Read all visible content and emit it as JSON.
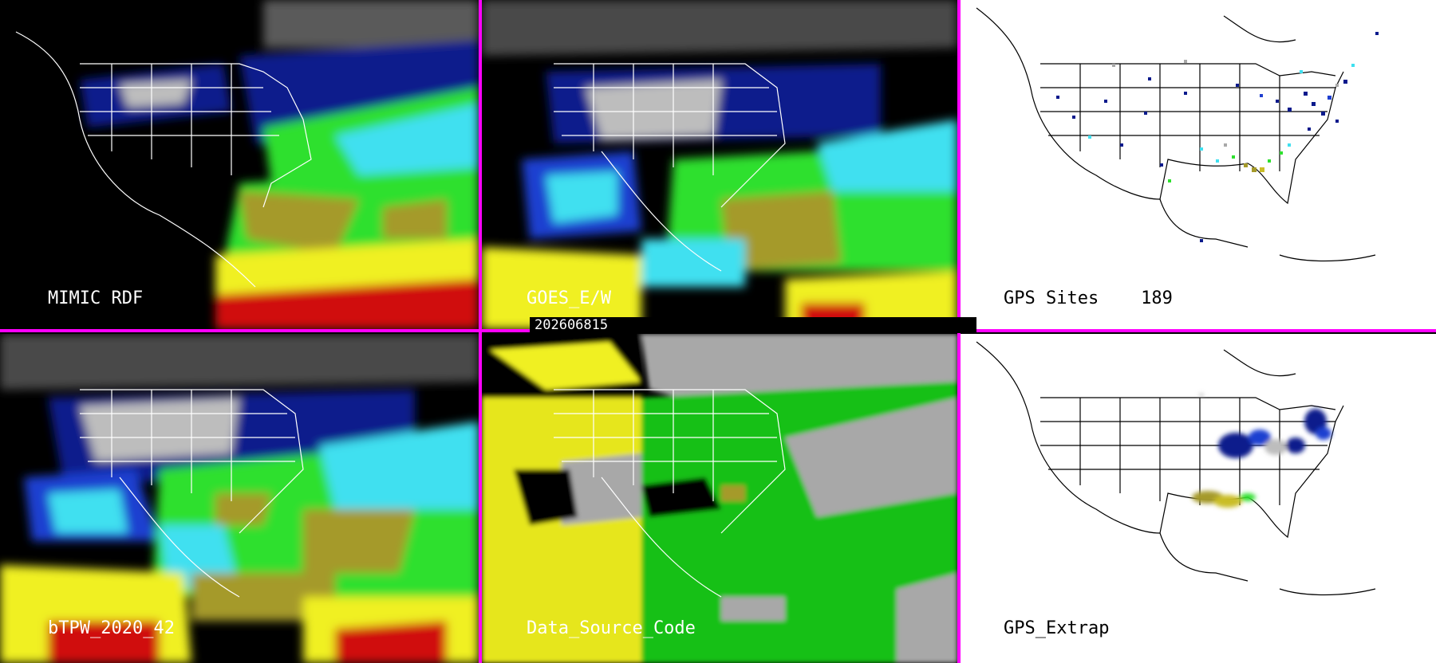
{
  "panels": [
    {
      "label": "MIMIC RDF"
    },
    {
      "label": "GOES_E/W"
    },
    {
      "label": "GPS Sites    189"
    },
    {
      "label": "bTPW_2020_42"
    },
    {
      "label": "Data_Source_Code"
    },
    {
      "label": "GPS_Extrap"
    }
  ],
  "timestamp": "202606815",
  "colors": {
    "divider": "#ff00ff",
    "navy": "#0a1a8c",
    "blue": "#1f3fd0",
    "cyan": "#3fe0f0",
    "green": "#2ee02e",
    "olive": "#a59a2a",
    "yellow": "#f0f020",
    "red": "#d01010",
    "gray": "#a8a8a8"
  }
}
